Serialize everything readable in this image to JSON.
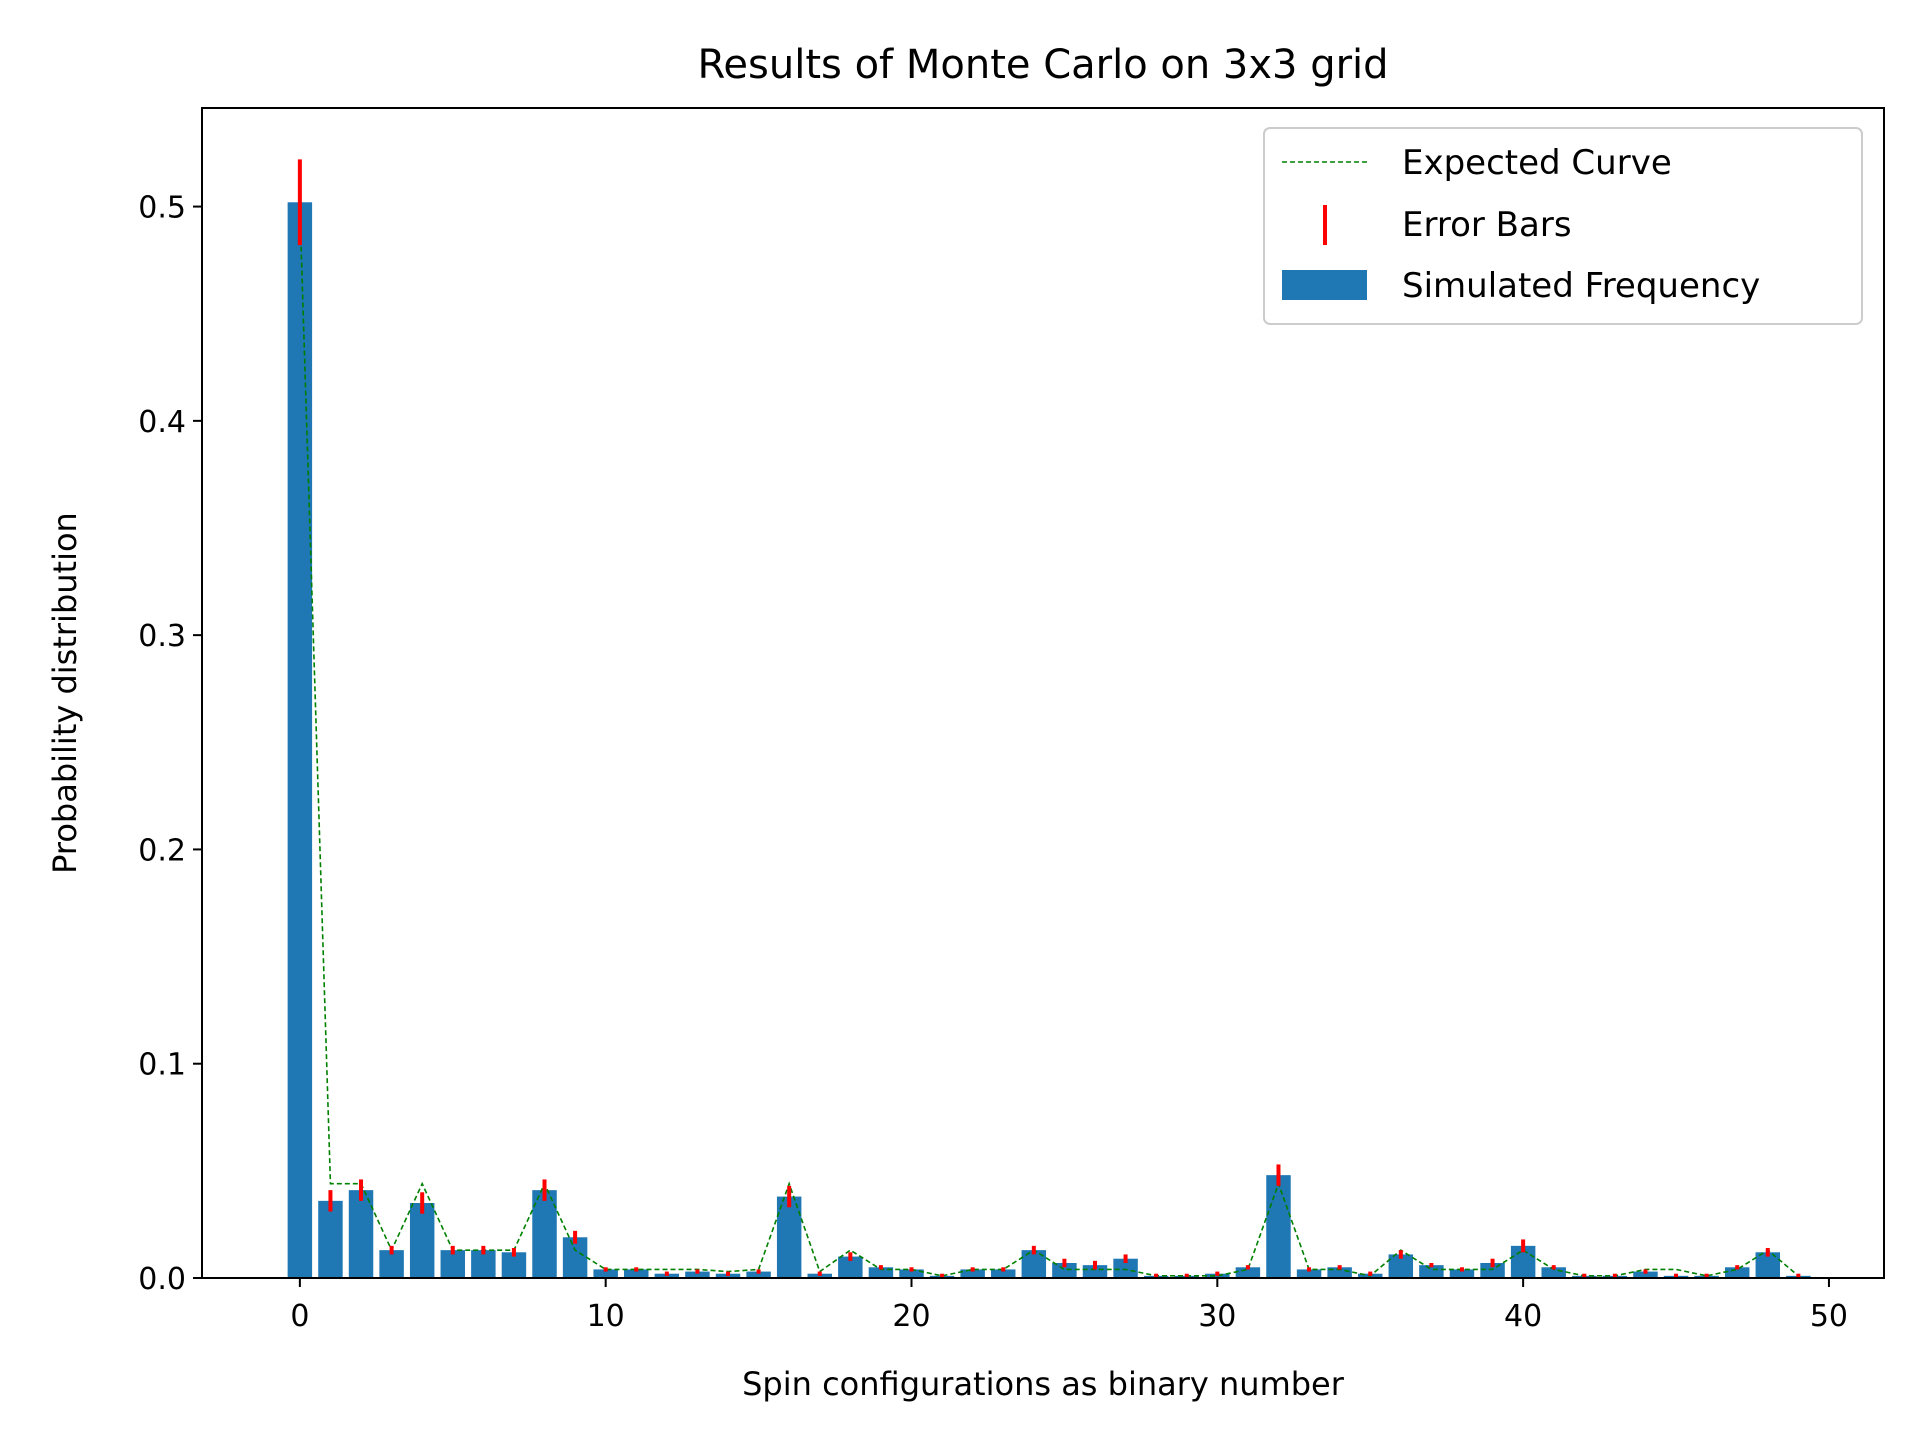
{
  "chart_data": {
    "type": "bar",
    "title": "Results of Monte Carlo on 3x3 grid",
    "xlabel": "Spin configurations as binary number",
    "ylabel": "Probability distribution",
    "xlim": [
      -3.2,
      51.8
    ],
    "ylim": [
      0,
      0.546
    ],
    "x_ticks": [
      0,
      10,
      20,
      30,
      40,
      50
    ],
    "y_ticks": [
      0.0,
      0.1,
      0.2,
      0.3,
      0.4,
      0.5
    ],
    "x_tick_labels": [
      "0",
      "10",
      "20",
      "30",
      "40",
      "50"
    ],
    "y_tick_labels": [
      "0.0",
      "0.1",
      "0.2",
      "0.3",
      "0.4",
      "0.5"
    ],
    "grid": false,
    "legend_position": "top-right",
    "legend": [
      "Expected Curve",
      "Error Bars",
      "Simulated Frequency"
    ],
    "colors": {
      "bars": "#1f77b4",
      "expected_curve": "#008000",
      "error_bars": "#ff0000"
    },
    "x": [
      0,
      1,
      2,
      3,
      4,
      5,
      6,
      7,
      8,
      9,
      10,
      11,
      12,
      13,
      14,
      15,
      16,
      17,
      18,
      19,
      20,
      21,
      22,
      23,
      24,
      25,
      26,
      27,
      28,
      29,
      30,
      31,
      32,
      33,
      34,
      35,
      36,
      37,
      38,
      39,
      40,
      41,
      42,
      43,
      44,
      45,
      46,
      47,
      48,
      49
    ],
    "series": [
      {
        "name": "Simulated Frequency",
        "values": [
          0.502,
          0.036,
          0.041,
          0.013,
          0.035,
          0.013,
          0.013,
          0.012,
          0.041,
          0.019,
          0.004,
          0.004,
          0.002,
          0.003,
          0.002,
          0.003,
          0.038,
          0.002,
          0.01,
          0.005,
          0.004,
          0.001,
          0.004,
          0.004,
          0.013,
          0.007,
          0.006,
          0.009,
          0.001,
          0.001,
          0.002,
          0.005,
          0.048,
          0.004,
          0.005,
          0.002,
          0.011,
          0.006,
          0.004,
          0.007,
          0.015,
          0.005,
          0.001,
          0.001,
          0.003,
          0.001,
          0.001,
          0.005,
          0.012,
          0.001
        ]
      },
      {
        "name": "Expected Curve",
        "values": [
          0.5,
          0.044,
          0.044,
          0.013,
          0.044,
          0.013,
          0.013,
          0.013,
          0.044,
          0.013,
          0.004,
          0.004,
          0.004,
          0.004,
          0.003,
          0.004,
          0.044,
          0.003,
          0.013,
          0.004,
          0.004,
          0.001,
          0.004,
          0.004,
          0.013,
          0.004,
          0.004,
          0.004,
          0.001,
          0.001,
          0.001,
          0.004,
          0.044,
          0.004,
          0.004,
          0.001,
          0.013,
          0.004,
          0.004,
          0.004,
          0.013,
          0.004,
          0.001,
          0.001,
          0.004,
          0.004,
          0.001,
          0.004,
          0.013,
          0.001
        ]
      },
      {
        "name": "Error Bars",
        "values": [
          0.02,
          0.005,
          0.005,
          0.002,
          0.005,
          0.002,
          0.002,
          0.002,
          0.005,
          0.003,
          0.001,
          0.001,
          0.001,
          0.001,
          0.001,
          0.001,
          0.005,
          0.001,
          0.002,
          0.001,
          0.001,
          0.001,
          0.001,
          0.001,
          0.002,
          0.002,
          0.002,
          0.002,
          0.001,
          0.001,
          0.001,
          0.001,
          0.005,
          0.001,
          0.001,
          0.001,
          0.002,
          0.001,
          0.001,
          0.002,
          0.003,
          0.001,
          0.001,
          0.001,
          0.001,
          0.001,
          0.001,
          0.001,
          0.002,
          0.001
        ]
      }
    ]
  }
}
